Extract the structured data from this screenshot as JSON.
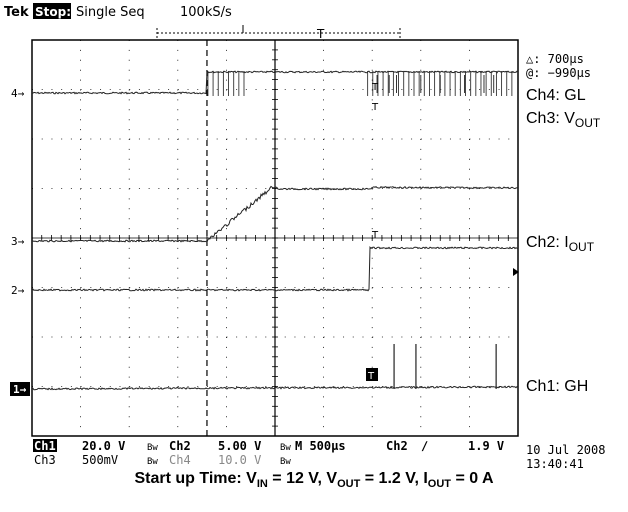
{
  "header": {
    "brand": "Tek",
    "state": "Stop:",
    "acq_mode": "Single Seq",
    "sample_rate": "100kS/s",
    "trigger_marker": "T"
  },
  "cursor_readout": {
    "delta": "△: 700µs",
    "at": "@: −990µs"
  },
  "grid": {
    "x_divisions": 10,
    "y_divisions": 8,
    "minor_per_division": 5
  },
  "channel_markers": [
    "4",
    "3",
    "2",
    "1"
  ],
  "trace_labels": {
    "ch4": {
      "main": "Ch4: GL",
      "sub": ""
    },
    "ch3": {
      "main": "Ch3: V",
      "sub": "OUT"
    },
    "ch2": {
      "main": "Ch2: I",
      "sub": "OUT"
    },
    "ch1": {
      "main": "Ch1: GH",
      "sub": ""
    }
  },
  "settings_row1": {
    "ch1": "Ch1",
    "ch1_scale": "20.0 V",
    "ch2": "Ch2",
    "ch2_scale": "5.00 V",
    "timebase": "M 500µs",
    "trig_src": "Ch2",
    "trig_slope": "∕",
    "trig_level": "1.9 V"
  },
  "settings_row2": {
    "ch3": "Ch3",
    "ch3_scale": "500mV",
    "ch4": "Ch4",
    "ch4_scale": "10.0 V"
  },
  "datetime": {
    "date": "10 Jul 2008",
    "time": "13:40:41"
  },
  "caption": {
    "p1": "Start up Time: V",
    "s1": "IN",
    "p2": " = 12 V, V",
    "s2": "OUT",
    "p3": " = 1.2 V, I",
    "s3": "OUT",
    "p4": " = 0 A"
  },
  "chart_data": {
    "type": "line",
    "x_unit": "divisions (500µs/div)",
    "trigger_position_div": 5,
    "cursor_positions_div": [
      3.6,
      5
    ],
    "series": [
      {
        "name": "Ch4: GL",
        "points": [
          [
            0,
            0
          ],
          [
            3.6,
            0
          ],
          [
            3.6,
            0.5
          ],
          [
            10,
            0.5
          ]
        ],
        "style": "pulses"
      },
      {
        "name": "Ch3: VOUT",
        "points": [
          [
            0,
            0
          ],
          [
            3.6,
            0
          ],
          [
            4.95,
            2.45
          ],
          [
            5.1,
            2.35
          ],
          [
            6.95,
            2.35
          ],
          [
            7.0,
            2.42
          ],
          [
            10,
            2.4
          ]
        ]
      },
      {
        "name": "Ch2: IOUT",
        "points": [
          [
            0,
            0
          ],
          [
            6.95,
            0
          ],
          [
            6.95,
            1.0
          ],
          [
            10,
            1.0
          ]
        ]
      },
      {
        "name": "Ch1: GH",
        "points": [
          [
            0,
            0
          ],
          [
            10,
            0.05
          ]
        ],
        "spikes_at": [
          7.45,
          7.9,
          9.55
        ]
      }
    ]
  }
}
